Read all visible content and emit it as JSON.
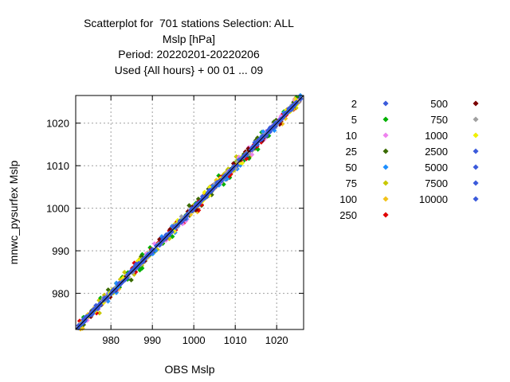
{
  "title_lines": [
    "Scatterplot for  701 stations Selection: ALL",
    "Mslp [hPa]",
    "Period: 20220201-20220206",
    "Used {All hours} + 00 01 ... 09"
  ],
  "chart_data": {
    "type": "scatter",
    "xlabel": "OBS Mslp",
    "ylabel": "mnwc_pysurfex Mslp",
    "xlim": [
      971.5,
      1026.5
    ],
    "ylim": [
      971.5,
      1026.5
    ],
    "xticks": [
      980,
      990,
      1000,
      1010,
      1020
    ],
    "yticks": [
      980,
      990,
      1000,
      1010,
      1020
    ],
    "grid": true,
    "legend_position": "right",
    "diagonal_reference_line": true,
    "point_cloud": {
      "x_range": [
        972,
        1026
      ],
      "spread_about_diagonal_hPa": 2.5,
      "description_values": "points lie along y = x"
    },
    "series": [
      {
        "name": "2",
        "color": "#3b5bdb"
      },
      {
        "name": "5",
        "color": "#00b000"
      },
      {
        "name": "10",
        "color": "#ee82ee"
      },
      {
        "name": "25",
        "color": "#3a6b00"
      },
      {
        "name": "50",
        "color": "#1e8fff"
      },
      {
        "name": "75",
        "color": "#c8c800"
      },
      {
        "name": "100",
        "color": "#f2c21a"
      },
      {
        "name": "250",
        "color": "#e00000"
      },
      {
        "name": "500",
        "color": "#7a0000"
      },
      {
        "name": "750",
        "color": "#a0a0a0"
      },
      {
        "name": "1000",
        "color": "#f0f000"
      },
      {
        "name": "2500",
        "color": "#3b5bdb"
      },
      {
        "name": "5000",
        "color": "#3b5bdb"
      },
      {
        "name": "7500",
        "color": "#3b5bdb"
      },
      {
        "name": "10000",
        "color": "#3b5bdb"
      }
    ]
  }
}
